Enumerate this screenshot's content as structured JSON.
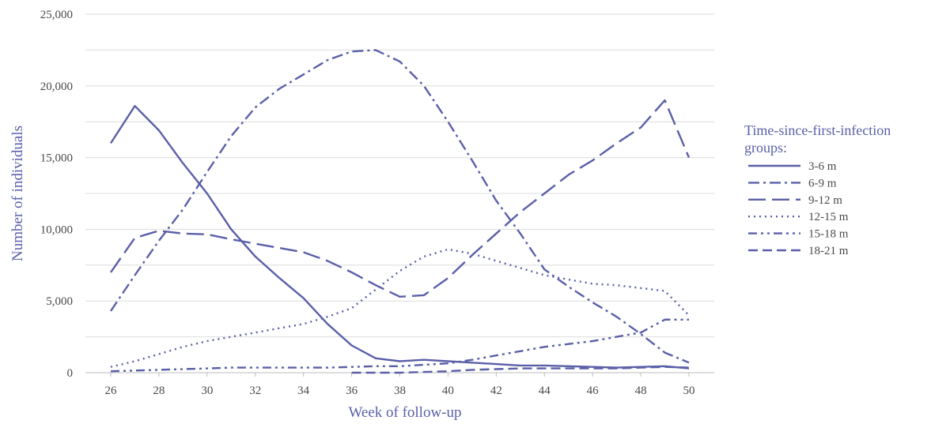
{
  "chart_data": {
    "type": "line",
    "title": "",
    "xlabel": "Week of follow-up",
    "ylabel": "Number of individuals",
    "xlim": [
      26,
      50
    ],
    "ylim": [
      0,
      25000
    ],
    "x_ticks": [
      "26",
      "28",
      "30",
      "32",
      "34",
      "36",
      "38",
      "40",
      "42",
      "44",
      "46",
      "48",
      "50"
    ],
    "y_ticks": [
      "0",
      "5,000",
      "10,000",
      "15,000",
      "20,000",
      "25,000"
    ],
    "grid": true,
    "legend_position": "right",
    "legend_title": [
      "Time-since-first-infection",
      "groups:"
    ],
    "color": "#5a5fa8",
    "x": [
      26,
      27,
      28,
      29,
      30,
      31,
      32,
      33,
      34,
      35,
      36,
      37,
      38,
      39,
      40,
      41,
      42,
      43,
      44,
      45,
      46,
      47,
      48,
      49,
      50
    ],
    "series": [
      {
        "name": "3-6 m",
        "dash": "solid",
        "values": [
          16000,
          18600,
          16900,
          14600,
          12500,
          10000,
          8100,
          6600,
          5200,
          3400,
          1900,
          1000,
          800,
          900,
          800,
          700,
          600,
          500,
          500,
          450,
          400,
          350,
          400,
          450,
          300
        ]
      },
      {
        "name": "6-9 m",
        "dash": "dash-dot",
        "values": [
          4300,
          6800,
          9200,
          11400,
          14000,
          16500,
          18500,
          19800,
          20800,
          21800,
          22400,
          22500,
          21700,
          20000,
          17500,
          14800,
          12000,
          9700,
          7200,
          6000,
          4900,
          3900,
          2700,
          1400,
          700
        ]
      },
      {
        "name": "9-12 m",
        "dash": "long-dash",
        "values": [
          7000,
          9400,
          9900,
          9700,
          9650,
          9300,
          9000,
          8700,
          8400,
          7800,
          7000,
          6100,
          5300,
          5400,
          6600,
          8200,
          9700,
          11200,
          12500,
          13800,
          14800,
          16000,
          17100,
          19000,
          15000
        ]
      },
      {
        "name": "12-15 m",
        "dash": "dotted",
        "values": [
          400,
          800,
          1300,
          1800,
          2200,
          2500,
          2800,
          3100,
          3400,
          3900,
          4500,
          5800,
          7100,
          8100,
          8600,
          8300,
          7800,
          7300,
          6800,
          6500,
          6200,
          6100,
          5900,
          5700,
          4000
        ]
      },
      {
        "name": "15-18 m",
        "dash": "dash-dot-dot",
        "values": [
          100,
          150,
          200,
          250,
          300,
          350,
          350,
          350,
          350,
          350,
          400,
          450,
          450,
          550,
          650,
          900,
          1200,
          1500,
          1800,
          2000,
          2200,
          2500,
          2800,
          3700,
          3700
        ]
      },
      {
        "name": "18-21 m",
        "dash": "short-dash",
        "values": [
          null,
          null,
          null,
          null,
          null,
          null,
          null,
          null,
          null,
          null,
          0,
          0,
          0,
          50,
          100,
          200,
          250,
          300,
          300,
          300,
          300,
          300,
          350,
          400,
          350
        ]
      }
    ]
  }
}
